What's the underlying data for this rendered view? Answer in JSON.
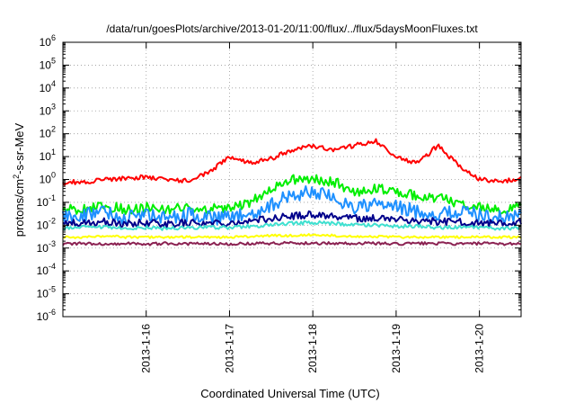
{
  "chart_data": {
    "type": "line",
    "title": "/data/run/goesPlots/archive/2013-01-20/11:00/flux/../flux/5daysMoonFluxes.txt",
    "xlabel": "Coordinated Universal Time (UTC)",
    "ylabel": "protons/cm²-s-sr-MeV",
    "ylabel_parts": {
      "pre": "protons/cm",
      "sup": "2",
      "post": "-s-sr-MeV"
    },
    "yscale": "log",
    "ylim": [
      1e-06,
      1000000.0
    ],
    "xlim": [
      "2013-01-15 00:00",
      "2013-01-20 12:00"
    ],
    "grid": true,
    "legend": "none",
    "x_tick_labels": [
      "2013-1-16",
      "2013-1-17",
      "2013-1-18",
      "2013-1-19",
      "2013-1-20"
    ],
    "y_tick_labels": [
      {
        "base": "10",
        "exp": "-6"
      },
      {
        "base": "10",
        "exp": "-5"
      },
      {
        "base": "10",
        "exp": "-4"
      },
      {
        "base": "10",
        "exp": "-3"
      },
      {
        "base": "10",
        "exp": "-2"
      },
      {
        "base": "10",
        "exp": "-1"
      },
      {
        "base": "10",
        "exp": "0"
      },
      {
        "base": "10",
        "exp": "1"
      },
      {
        "base": "10",
        "exp": "2"
      },
      {
        "base": "10",
        "exp": "3"
      },
      {
        "base": "10",
        "exp": "4"
      },
      {
        "base": "10",
        "exp": "5"
      },
      {
        "base": "10",
        "exp": "6"
      }
    ],
    "x": [
      "2013-01-15 00:00",
      "2013-01-15 06:00",
      "2013-01-15 12:00",
      "2013-01-15 18:00",
      "2013-01-16 00:00",
      "2013-01-16 06:00",
      "2013-01-16 12:00",
      "2013-01-16 18:00",
      "2013-01-17 00:00",
      "2013-01-17 06:00",
      "2013-01-17 12:00",
      "2013-01-17 18:00",
      "2013-01-18 00:00",
      "2013-01-18 06:00",
      "2013-01-18 12:00",
      "2013-01-18 18:00",
      "2013-01-19 00:00",
      "2013-01-19 06:00",
      "2013-01-19 12:00",
      "2013-01-19 18:00",
      "2013-01-20 00:00",
      "2013-01-20 06:00",
      "2013-01-20 12:00"
    ],
    "series": [
      {
        "color": "#ff0000",
        "values": [
          0.7,
          0.8,
          1.0,
          1.1,
          1.3,
          1.0,
          0.9,
          2.0,
          10,
          5,
          8,
          20,
          30,
          20,
          30,
          50,
          10,
          5,
          30,
          4,
          1.0,
          0.8,
          1.2
        ]
      },
      {
        "color": "#00ee00",
        "values": [
          0.05,
          0.05,
          0.07,
          0.05,
          0.06,
          0.05,
          0.06,
          0.05,
          0.06,
          0.1,
          0.4,
          1.0,
          1.0,
          0.8,
          0.3,
          0.4,
          0.3,
          0.2,
          0.15,
          0.1,
          0.06,
          0.05,
          0.06
        ]
      },
      {
        "color": "#1e90ff",
        "values": [
          0.02,
          0.03,
          0.04,
          0.02,
          0.03,
          0.02,
          0.03,
          0.02,
          0.02,
          0.03,
          0.08,
          0.2,
          0.3,
          0.15,
          0.06,
          0.08,
          0.06,
          0.04,
          0.03,
          0.04,
          0.03,
          0.02,
          0.03
        ]
      },
      {
        "color": "#00008b",
        "values": [
          0.012,
          0.012,
          0.014,
          0.011,
          0.013,
          0.011,
          0.013,
          0.012,
          0.013,
          0.015,
          0.02,
          0.025,
          0.03,
          0.025,
          0.02,
          0.02,
          0.018,
          0.016,
          0.014,
          0.014,
          0.012,
          0.012,
          0.013
        ]
      },
      {
        "color": "#40e0d0",
        "values": [
          0.007,
          0.008,
          0.008,
          0.007,
          0.008,
          0.007,
          0.008,
          0.008,
          0.008,
          0.009,
          0.01,
          0.012,
          0.013,
          0.012,
          0.01,
          0.01,
          0.009,
          0.009,
          0.008,
          0.008,
          0.008,
          0.007,
          0.008
        ]
      },
      {
        "color": "#ffff00",
        "values": [
          0.003,
          0.003,
          0.0035,
          0.003,
          0.003,
          0.003,
          0.003,
          0.003,
          0.003,
          0.0032,
          0.0035,
          0.0035,
          0.0038,
          0.0035,
          0.0033,
          0.0032,
          0.003,
          0.003,
          0.003,
          0.003,
          0.003,
          0.003,
          0.003
        ]
      },
      {
        "color": "#8b2252",
        "values": [
          0.0015,
          0.0016,
          0.0015,
          0.0016,
          0.0015,
          0.0016,
          0.0015,
          0.0016,
          0.0015,
          0.0016,
          0.0016,
          0.0017,
          0.0016,
          0.0016,
          0.0016,
          0.0016,
          0.0015,
          0.0016,
          0.0016,
          0.0015,
          0.0016,
          0.0015,
          0.0016
        ]
      }
    ]
  }
}
